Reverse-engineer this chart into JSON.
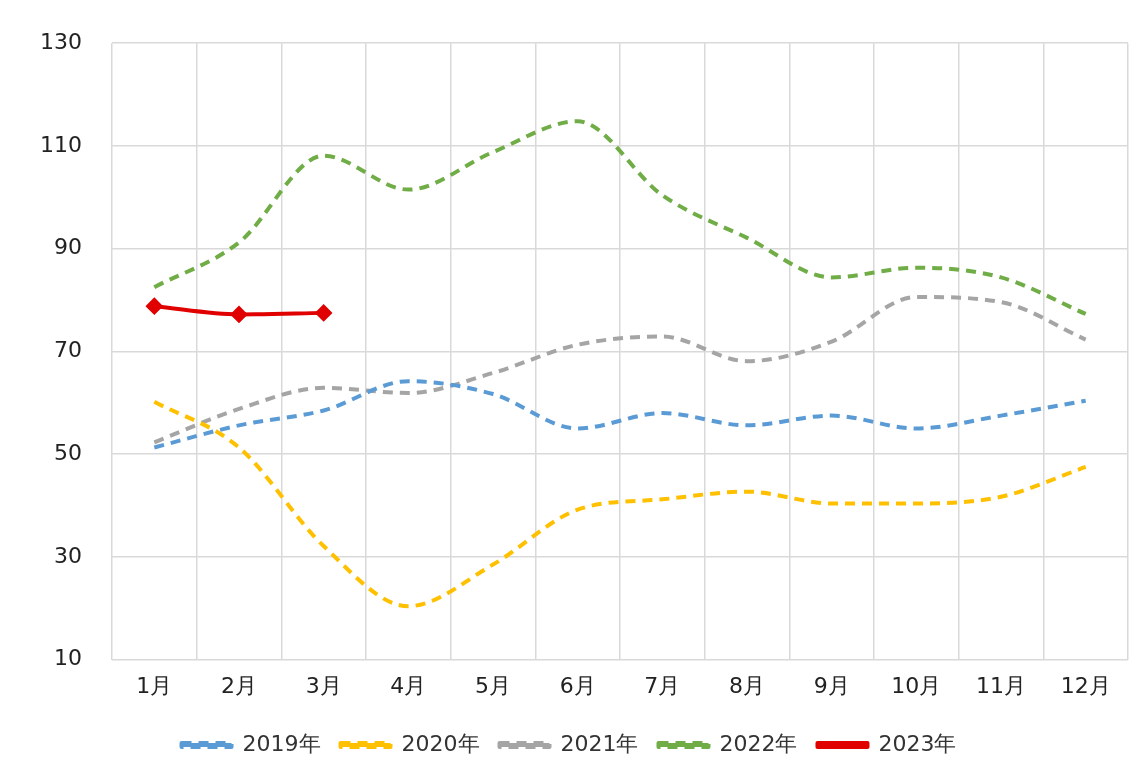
{
  "chart_data": {
    "type": "line",
    "categories": [
      "1月",
      "2月",
      "3月",
      "4月",
      "5月",
      "6月",
      "7月",
      "8月",
      "9月",
      "10月",
      "11月",
      "12月"
    ],
    "series": [
      {
        "name": "2019年",
        "color": "#5b9bd5",
        "line_style": "dashed",
        "marker": "none",
        "values": [
          51.3,
          55.6,
          58.5,
          64.2,
          61.7,
          55,
          58,
          55.6,
          57.5,
          55,
          57.5,
          60.4
        ]
      },
      {
        "name": "2020年",
        "color": "#ffc000",
        "line_style": "dashed",
        "marker": "none",
        "values": [
          60.2,
          51.3,
          32.1,
          20.4,
          28.5,
          39.2,
          41.2,
          42.7,
          40.4,
          40.4,
          41.7,
          47.5
        ]
      },
      {
        "name": "2021年",
        "color": "#a5a5a5",
        "line_style": "dashed",
        "marker": "none",
        "values": [
          52.3,
          58.8,
          62.9,
          61.9,
          65.8,
          71.3,
          72.9,
          68.1,
          71.9,
          80.6,
          79.6,
          72.3
        ]
      },
      {
        "name": "2022年",
        "color": "#70ad47",
        "line_style": "dashed",
        "marker": "none",
        "values": [
          82.5,
          91.2,
          108.1,
          101.5,
          108.8,
          114.8,
          100.4,
          92.1,
          84.4,
          86.3,
          84.4,
          77.3
        ]
      },
      {
        "name": "2023年",
        "color": "#e00000",
        "line_style": "solid",
        "marker": "diamond",
        "values": [
          78.8,
          77.2,
          77.5,
          null,
          null,
          null,
          null,
          null,
          null,
          null,
          null,
          null
        ]
      }
    ],
    "ylim": [
      10,
      130
    ],
    "yticks": [
      10,
      30,
      50,
      70,
      90,
      110,
      130
    ],
    "grid": true,
    "legend": "bottom"
  }
}
